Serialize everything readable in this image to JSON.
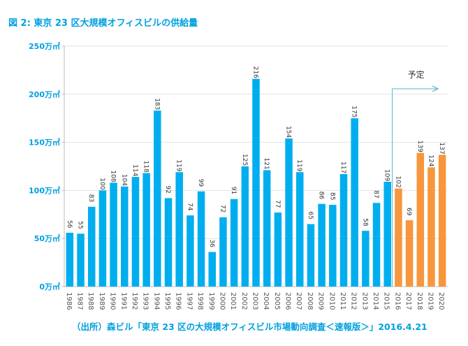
{
  "chart_data": {
    "type": "bar",
    "title": "図 2: 東京 23 区大規模オフィスビルの供給量",
    "source": "（出所）森ビル「東京 23 区の大規模オフィスビル市場動向調査＜速報版＞」2016.4.21",
    "categories": [
      "1986",
      "1987",
      "1988",
      "1989",
      "1990",
      "1991",
      "1992",
      "1993",
      "1994",
      "1995",
      "1996",
      "1997",
      "1998",
      "1999",
      "2000",
      "2001",
      "2002",
      "2003",
      "2004",
      "2005",
      "2006",
      "2007",
      "2008",
      "2009",
      "2010",
      "2011",
      "2012",
      "2013",
      "2014",
      "2015",
      "2016",
      "2017",
      "2018",
      "2019",
      "2020"
    ],
    "values": [
      56,
      55,
      83,
      100,
      108,
      104,
      114,
      118,
      183,
      92,
      119,
      74,
      99,
      36,
      72,
      91,
      125,
      216,
      121,
      77,
      154,
      119,
      65,
      86,
      85,
      117,
      175,
      58,
      87,
      109,
      102,
      69,
      139,
      124,
      137
    ],
    "forecast_from_index": 30,
    "forecast_label": "予定",
    "yticks": [
      0,
      50,
      100,
      150,
      200,
      250
    ],
    "ytick_labels": [
      "0万㎡",
      "50万㎡",
      "100万㎡",
      "150万㎡",
      "200万㎡",
      "250万㎡"
    ],
    "ylim": [
      0,
      250
    ],
    "grid": true,
    "colors": {
      "actual": "#00aeef",
      "forecast": "#f7963c",
      "accent": "#00a0e0"
    }
  }
}
